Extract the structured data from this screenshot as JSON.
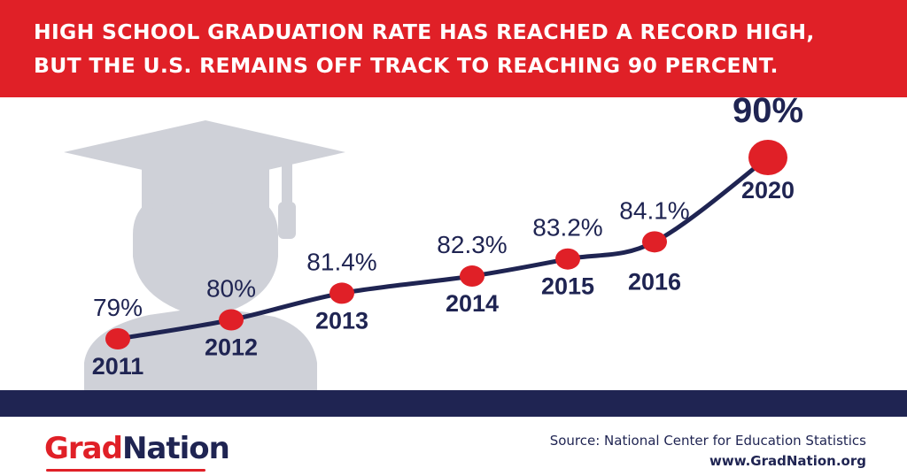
{
  "header": {
    "title_line1": "HIGH SCHOOL GRADUATION RATE HAS REACHED A RECORD HIGH,",
    "title_line2": "BUT THE U.S. REMAINS OFF TRACK TO REACHING 90 PERCENT."
  },
  "colors": {
    "accent_red": "#e02027",
    "navy": "#1f2452",
    "silhouette_gray": "#cfd1d8"
  },
  "icons": [
    "graduate-silhouette-icon"
  ],
  "chart_data": {
    "type": "line",
    "title": "HIGH SCHOOL GRADUATION RATE HAS REACHED A RECORD HIGH, BUT THE U.S. REMAINS OFF TRACK TO REACHING 90 PERCENT.",
    "xlabel": "",
    "ylabel": "",
    "x": [
      "2011",
      "2012",
      "2013",
      "2014",
      "2015",
      "2016",
      "2020"
    ],
    "values": [
      79,
      80,
      81.4,
      82.3,
      83.2,
      84.1,
      90
    ],
    "labels": [
      "79%",
      "80%",
      "81.4%",
      "82.3%",
      "83.2%",
      "84.1%",
      "90%"
    ],
    "grid": false,
    "legend": "none"
  },
  "footer": {
    "logo_part1": "Grad",
    "logo_part2": "Nation",
    "source": "Source: National Center for Education Statistics",
    "website": "www.GradNation.org"
  }
}
